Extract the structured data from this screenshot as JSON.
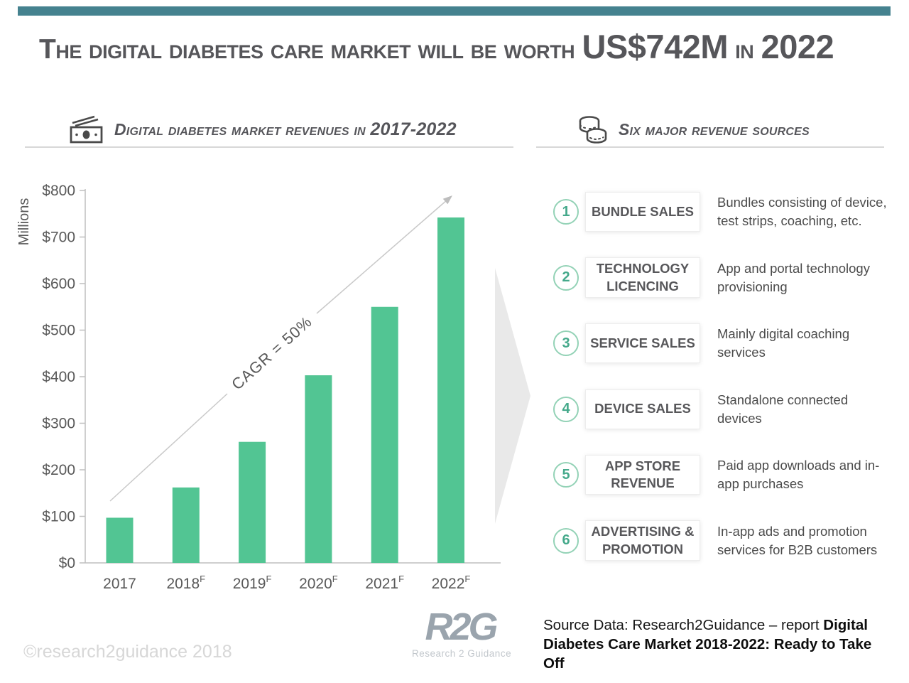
{
  "title": {
    "prefix": "The digital diabetes care market will be worth ",
    "value": "US$742M",
    "mid": " in ",
    "year": "2022"
  },
  "sections": {
    "left": {
      "heading_prefix": "Digital diabetes market revenues in ",
      "heading_bold": "2017-2022",
      "icon": "banknote-icon"
    },
    "right": {
      "heading": "Six major revenue sources",
      "icon": "coins-icon"
    }
  },
  "chart_data": {
    "type": "bar",
    "categories": [
      "2017",
      "2018",
      "2019",
      "2020",
      "2021",
      "2022"
    ],
    "forecast_superscript": [
      "",
      "F",
      "F",
      "F",
      "F",
      "F"
    ],
    "values": [
      97,
      162,
      260,
      403,
      550,
      742
    ],
    "unit": "US$ millions",
    "ylabel": "Millions",
    "yticks": [
      "$0",
      "$100",
      "$200",
      "$300",
      "$400",
      "$500",
      "$600",
      "$700",
      "$800"
    ],
    "ylim": [
      0,
      800
    ],
    "annotation": "CAGR = 50%",
    "bar_color": "#52c593",
    "grid": false,
    "legend": "none"
  },
  "sources": [
    {
      "num": "1",
      "label": "BUNDLE SALES",
      "description": "Bundles consisting of device, test strips, coaching, etc."
    },
    {
      "num": "2",
      "label": "TECHNOLOGY LICENCING",
      "description": "App and portal technology provisioning"
    },
    {
      "num": "3",
      "label": "SERVICE SALES",
      "description": "Mainly digital coaching services"
    },
    {
      "num": "4",
      "label": "DEVICE SALES",
      "description": "Standalone connected devices"
    },
    {
      "num": "5",
      "label": "APP STORE REVENUE",
      "description": "Paid app downloads and in-app purchases"
    },
    {
      "num": "6",
      "label": "ADVERTISING & PROMOTION",
      "description": "In-app ads and promotion services for B2B customers"
    }
  ],
  "footer": {
    "copyright": "©research2guidance 2018",
    "logo_text": "R2G",
    "logo_subtitle": "Research 2 Guidance",
    "source_prefix": "Source Data: Research2Guidance – report ",
    "source_bold": "Digital Diabetes Care Market 2018-2022: Ready to Take Off"
  },
  "colors": {
    "accent_teal": "#45828f",
    "bar_green": "#52c593",
    "circle_green": "#45a98b",
    "text_gray": "#56565a",
    "divider_gray": "#d8d8d8",
    "arrow_gray": "#e9e9e9"
  }
}
